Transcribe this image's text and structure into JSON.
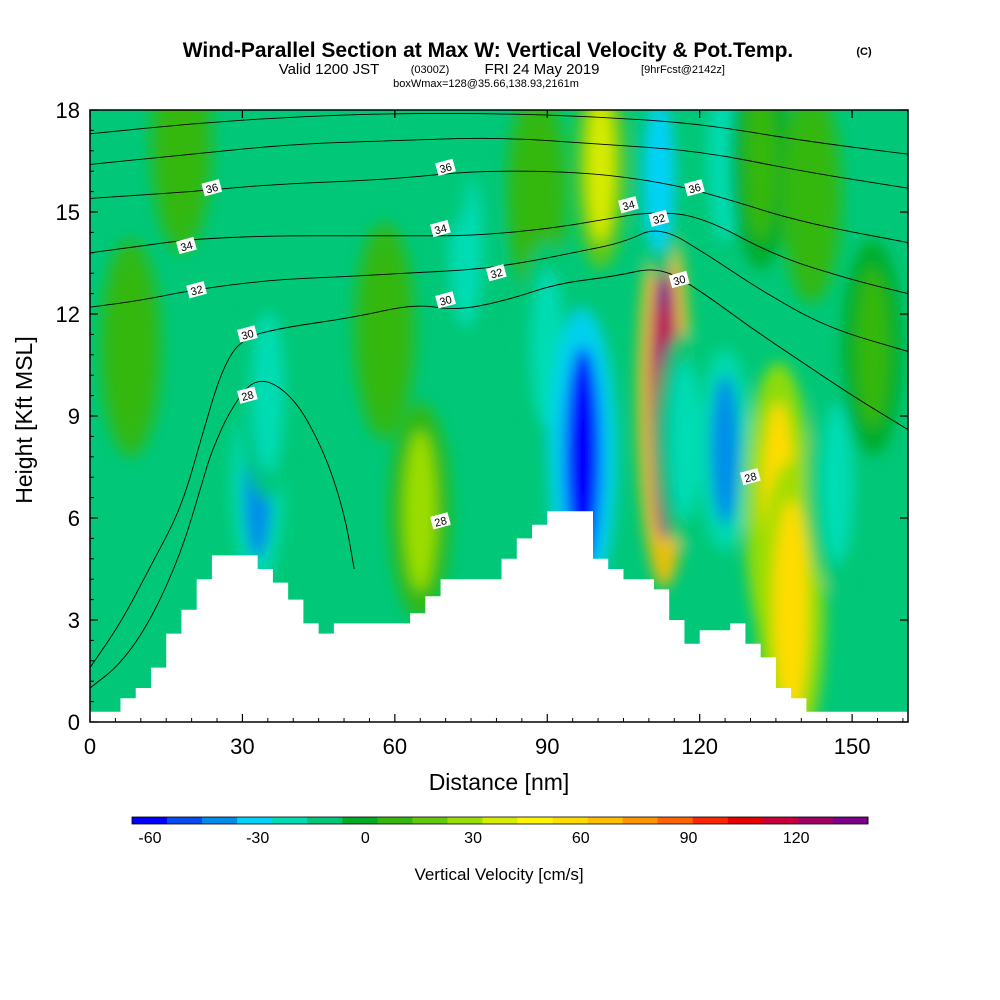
{
  "chart_data": {
    "type": "heatmap",
    "title": "Wind-Parallel Section at Max W: Vertical Velocity & Pot.Temp.",
    "title_mark": "(C)",
    "subtitle": {
      "valid": "Valid 1200 JST",
      "utc": "(0300Z)",
      "date": "FRI 24 May 2019",
      "fcst": "[9hrFcst@2142z]"
    },
    "subsubtitle": "boxWmax=128@35.66,138.93,2161m",
    "xlabel": "Distance [nm]",
    "ylabel": "Height [Kft MSL]",
    "xlim": [
      0,
      161
    ],
    "ylim": [
      0,
      18
    ],
    "xticks": [
      0,
      30,
      60,
      90,
      120,
      150
    ],
    "yticks": [
      0,
      3,
      6,
      9,
      12,
      15,
      18
    ],
    "colorbar": {
      "label": "Vertical Velocity [cm/s]",
      "ticks": [
        -60,
        -30,
        0,
        30,
        60,
        90,
        120
      ],
      "range": [
        -65,
        140
      ],
      "bin_width": 10,
      "colors": [
        "#0000ff",
        "#0a4bf0",
        "#008ceb",
        "#00d2fa",
        "#00dcb4",
        "#00c878",
        "#00ab26",
        "#35b70e",
        "#65c80d",
        "#9bdd05",
        "#d7eb00",
        "#fff500",
        "#ffdc00",
        "#ffbe00",
        "#ff9600",
        "#ff6400",
        "#fa2800",
        "#e60000",
        "#c8003c",
        "#a00064",
        "#7d0089"
      ]
    },
    "grid": false,
    "w_cells": [
      {
        "x": 33,
        "y": 7.0,
        "w": -40
      },
      {
        "x": 35,
        "y": 9.7,
        "w": -20
      },
      {
        "x": 18,
        "y": 17.0,
        "w": 10
      },
      {
        "x": 8,
        "y": 11.0,
        "w": 10
      },
      {
        "x": 58,
        "y": 11.5,
        "w": 10
      },
      {
        "x": 65,
        "y": 6.2,
        "w": 25
      },
      {
        "x": 74,
        "y": 14.0,
        "w": -18
      },
      {
        "x": 70,
        "y": 17.5,
        "w": -12
      },
      {
        "x": 88,
        "y": 15.5,
        "w": 10
      },
      {
        "x": 90,
        "y": 11.0,
        "w": -20
      },
      {
        "x": 97,
        "y": 7.8,
        "w": -58
      },
      {
        "x": 100.5,
        "y": 16.3,
        "w": 40
      },
      {
        "x": 113,
        "y": 9.5,
        "w": 140
      },
      {
        "x": 112,
        "y": 16.0,
        "w": -30
      },
      {
        "x": 117,
        "y": 8.3,
        "w": -20
      },
      {
        "x": 125,
        "y": 8.0,
        "w": -40
      },
      {
        "x": 135.5,
        "y": 6.2,
        "w": 55
      },
      {
        "x": 138,
        "y": 3.3,
        "w": 60
      },
      {
        "x": 125,
        "y": 16.5,
        "w": -20
      },
      {
        "x": 132,
        "y": 16.5,
        "w": 8
      },
      {
        "x": 142,
        "y": 15.5,
        "w": 10
      },
      {
        "x": 147,
        "y": 7.0,
        "w": -25
      },
      {
        "x": 154,
        "y": 11.0,
        "w": 8
      }
    ],
    "terrain": [
      [
        0,
        0.3
      ],
      [
        6,
        0.7
      ],
      [
        9,
        1.0
      ],
      [
        12,
        1.6
      ],
      [
        15,
        2.6
      ],
      [
        18,
        3.3
      ],
      [
        21,
        4.2
      ],
      [
        24,
        4.9
      ],
      [
        30,
        4.9
      ],
      [
        33,
        4.5
      ],
      [
        36,
        4.1
      ],
      [
        39,
        3.6
      ],
      [
        42,
        2.9
      ],
      [
        45,
        2.6
      ],
      [
        48,
        2.9
      ],
      [
        60,
        2.9
      ],
      [
        63,
        3.2
      ],
      [
        66,
        3.7
      ],
      [
        69,
        4.2
      ],
      [
        78,
        4.2
      ],
      [
        81,
        4.8
      ],
      [
        84,
        5.4
      ],
      [
        87,
        5.8
      ],
      [
        90,
        6.2
      ],
      [
        96,
        6.2
      ],
      [
        99,
        4.8
      ],
      [
        102,
        4.5
      ],
      [
        105,
        4.2
      ],
      [
        108,
        4.2
      ],
      [
        111,
        3.9
      ],
      [
        114,
        3.0
      ],
      [
        117,
        2.3
      ],
      [
        120,
        2.7
      ],
      [
        123,
        2.7
      ],
      [
        126,
        2.9
      ],
      [
        129,
        2.3
      ],
      [
        132,
        1.9
      ],
      [
        135,
        1.0
      ],
      [
        138,
        0.7
      ],
      [
        141,
        0.3
      ],
      [
        161,
        0.3
      ]
    ],
    "potential_temperature_contours": [
      {
        "level": 28,
        "points": [
          [
            0,
            1.0
          ],
          [
            6,
            1.7
          ],
          [
            12,
            3.0
          ],
          [
            18,
            5.0
          ],
          [
            22,
            7.0
          ],
          [
            24,
            8.0
          ],
          [
            28,
            9.3
          ],
          [
            33,
            10.2
          ],
          [
            40,
            9.6
          ],
          [
            46,
            8.0
          ],
          [
            50,
            6.2
          ],
          [
            52,
            4.5
          ]
        ],
        "labels": [
          [
            31,
            9.6
          ],
          [
            69,
            5.9
          ],
          [
            130,
            7.2
          ]
        ]
      },
      {
        "level": 30,
        "points": [
          [
            0,
            1.6
          ],
          [
            6,
            2.9
          ],
          [
            12,
            4.6
          ],
          [
            18,
            6.3
          ],
          [
            22,
            8.4
          ],
          [
            26,
            10.4
          ],
          [
            30,
            11.3
          ],
          [
            38,
            11.6
          ],
          [
            52,
            11.9
          ],
          [
            64,
            12.3
          ],
          [
            72,
            12.1
          ],
          [
            82,
            12.4
          ],
          [
            92,
            12.9
          ],
          [
            103,
            13.1
          ],
          [
            112,
            13.4
          ],
          [
            120,
            12.7
          ],
          [
            130,
            11.6
          ],
          [
            140,
            10.6
          ],
          [
            150,
            9.6
          ],
          [
            161,
            8.6
          ]
        ],
        "labels": [
          [
            31,
            11.4
          ],
          [
            70,
            12.4
          ],
          [
            116,
            13.0
          ]
        ]
      },
      {
        "level": 32,
        "points": [
          [
            0,
            12.2
          ],
          [
            10,
            12.4
          ],
          [
            20,
            12.7
          ],
          [
            35,
            13.0
          ],
          [
            50,
            13.1
          ],
          [
            62,
            13.2
          ],
          [
            75,
            13.3
          ],
          [
            85,
            13.5
          ],
          [
            95,
            13.8
          ],
          [
            105,
            14.1
          ],
          [
            112,
            14.6
          ],
          [
            122,
            13.7
          ],
          [
            132,
            12.7
          ],
          [
            145,
            11.6
          ],
          [
            161,
            10.9
          ]
        ],
        "labels": [
          [
            21,
            12.7
          ],
          [
            80,
            13.2
          ],
          [
            112,
            14.8
          ]
        ]
      },
      {
        "level": 34,
        "points": [
          [
            0,
            13.8
          ],
          [
            10,
            14.0
          ],
          [
            20,
            14.2
          ],
          [
            35,
            14.3
          ],
          [
            50,
            14.3
          ],
          [
            62,
            14.3
          ],
          [
            75,
            14.3
          ],
          [
            90,
            14.5
          ],
          [
            102,
            14.8
          ],
          [
            110,
            15.0
          ],
          [
            120,
            14.9
          ],
          [
            135,
            13.7
          ],
          [
            150,
            13.0
          ],
          [
            161,
            12.6
          ]
        ],
        "labels": [
          [
            19,
            14.0
          ],
          [
            69,
            14.5
          ],
          [
            106,
            15.2
          ]
        ]
      },
      {
        "level": 36,
        "points": [
          [
            0,
            15.4
          ],
          [
            10,
            15.5
          ],
          [
            20,
            15.6
          ],
          [
            35,
            15.8
          ],
          [
            50,
            15.9
          ],
          [
            62,
            16.0
          ],
          [
            75,
            16.2
          ],
          [
            90,
            16.2
          ],
          [
            102,
            16.1
          ],
          [
            115,
            15.8
          ],
          [
            125,
            15.4
          ],
          [
            140,
            14.7
          ],
          [
            161,
            14.1
          ]
        ],
        "labels": [
          [
            24,
            15.7
          ],
          [
            70,
            16.3
          ],
          [
            119,
            15.7
          ]
        ]
      },
      {
        "level": 38,
        "points": [
          [
            0,
            16.4
          ],
          [
            20,
            16.7
          ],
          [
            40,
            17.0
          ],
          [
            60,
            17.1
          ],
          [
            80,
            17.2
          ],
          [
            100,
            17.0
          ],
          [
            120,
            16.8
          ],
          [
            140,
            16.2
          ],
          [
            161,
            15.7
          ]
        ],
        "labels": []
      },
      {
        "level": 40,
        "points": [
          [
            0,
            17.3
          ],
          [
            20,
            17.6
          ],
          [
            40,
            17.8
          ],
          [
            60,
            17.9
          ],
          [
            80,
            17.9
          ],
          [
            100,
            17.8
          ],
          [
            120,
            17.6
          ],
          [
            140,
            17.1
          ],
          [
            161,
            16.7
          ]
        ],
        "labels": []
      }
    ]
  }
}
